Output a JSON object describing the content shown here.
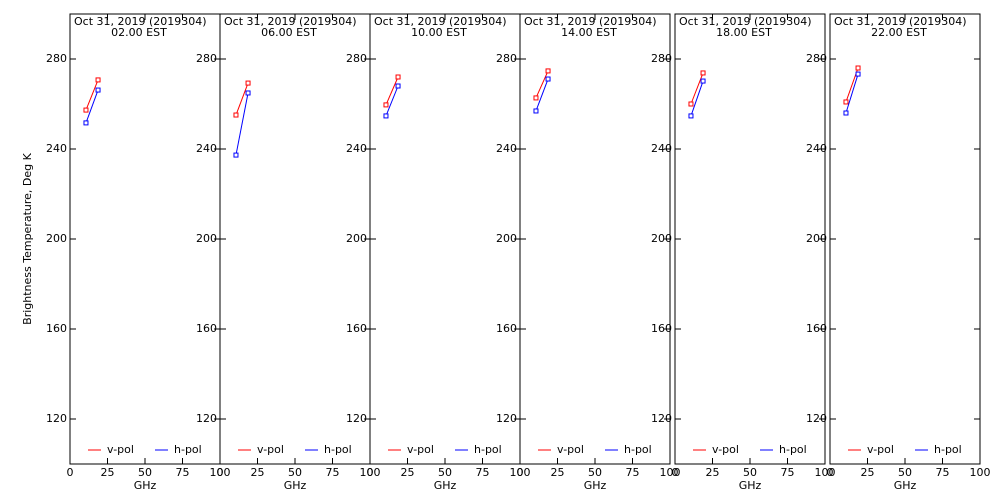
{
  "chart_data": [
    {
      "type": "line",
      "title": "Oct 31, 2019 (2019304)",
      "subtitle": "02.00 EST",
      "ylabel": "Brightness Temperature, Deg K",
      "xlabel": "GHz",
      "x": [
        10.65,
        18.7
      ],
      "series": [
        {
          "name": "v-pol",
          "color": "#ff0000",
          "values": [
            257.3,
            270.7
          ]
        },
        {
          "name": "h-pol",
          "color": "#0000ff",
          "values": [
            251.6,
            266.2
          ]
        }
      ],
      "xlim": [
        0,
        100
      ],
      "xticks": [
        0,
        25,
        50,
        75,
        100
      ],
      "ylim": [
        100,
        300
      ],
      "yticks": [
        120,
        160,
        200,
        240,
        280
      ]
    },
    {
      "type": "line",
      "title": "Oct 31, 2019 (2019304)",
      "subtitle": "06.00 EST",
      "xlabel": "GHz",
      "x": [
        10.65,
        18.7
      ],
      "series": [
        {
          "name": "v-pol",
          "color": "#ff0000",
          "values": [
            255.1,
            269.3
          ]
        },
        {
          "name": "h-pol",
          "color": "#0000ff",
          "values": [
            237.3,
            264.9
          ]
        }
      ],
      "xlim": [
        0,
        100
      ],
      "xticks": [
        0,
        25,
        50,
        75,
        100
      ],
      "ylim": [
        100,
        300
      ],
      "yticks": [
        120,
        160,
        200,
        240,
        280
      ]
    },
    {
      "type": "line",
      "title": "Oct 31, 2019 (2019304)",
      "subtitle": "10.00 EST",
      "xlabel": "GHz",
      "x": [
        10.65,
        18.7
      ],
      "series": [
        {
          "name": "v-pol",
          "color": "#ff0000",
          "values": [
            259.6,
            272.0
          ]
        },
        {
          "name": "h-pol",
          "color": "#0000ff",
          "values": [
            254.7,
            268.0
          ]
        }
      ],
      "xlim": [
        0,
        100
      ],
      "xticks": [
        0,
        25,
        50,
        75,
        100
      ],
      "ylim": [
        100,
        300
      ],
      "yticks": [
        120,
        160,
        200,
        240,
        280
      ]
    },
    {
      "type": "line",
      "title": "Oct 31, 2019 (2019304)",
      "subtitle": "14.00 EST",
      "xlabel": "GHz",
      "x": [
        10.65,
        18.7
      ],
      "series": [
        {
          "name": "v-pol",
          "color": "#ff0000",
          "values": [
            262.7,
            274.7
          ]
        },
        {
          "name": "h-pol",
          "color": "#0000ff",
          "values": [
            256.9,
            271.1
          ]
        }
      ],
      "xlim": [
        0,
        100
      ],
      "xticks": [
        0,
        25,
        50,
        75,
        100
      ],
      "ylim": [
        100,
        300
      ],
      "yticks": [
        120,
        160,
        200,
        240,
        280
      ]
    },
    {
      "type": "line",
      "title": "Oct 31, 2019 (2019304)",
      "subtitle": "18.00 EST",
      "xlabel": "GHz",
      "x": [
        10.65,
        18.7
      ],
      "series": [
        {
          "name": "v-pol",
          "color": "#ff0000",
          "values": [
            260.0,
            273.8
          ]
        },
        {
          "name": "h-pol",
          "color": "#0000ff",
          "values": [
            254.7,
            270.2
          ]
        }
      ],
      "xlim": [
        0,
        100
      ],
      "xticks": [
        0,
        25,
        50,
        75,
        100
      ],
      "ylim": [
        100,
        300
      ],
      "yticks": [
        120,
        160,
        200,
        240,
        280
      ]
    },
    {
      "type": "line",
      "title": "Oct 31, 2019 (2019304)",
      "subtitle": "22.00 EST",
      "xlabel": "GHz",
      "x": [
        10.65,
        18.7
      ],
      "series": [
        {
          "name": "v-pol",
          "color": "#ff0000",
          "values": [
            260.9,
            276.0
          ]
        },
        {
          "name": "h-pol",
          "color": "#0000ff",
          "values": [
            256.0,
            273.3
          ]
        }
      ],
      "xlim": [
        0,
        100
      ],
      "xticks": [
        0,
        25,
        50,
        75,
        100
      ],
      "ylim": [
        100,
        300
      ],
      "yticks": [
        120,
        160,
        200,
        240,
        280
      ]
    }
  ]
}
